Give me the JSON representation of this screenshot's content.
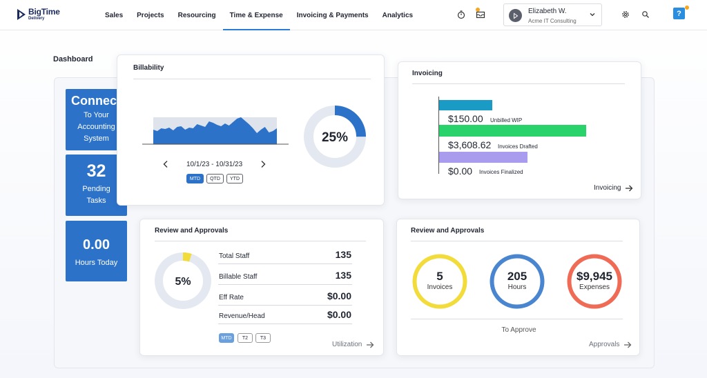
{
  "app": {
    "logo_title": "BigTime",
    "logo_sub": "Delivery"
  },
  "nav": {
    "items": [
      "Sales",
      "Projects",
      "Resourcing",
      "Time & Expense",
      "Invoicing & Payments",
      "Analytics"
    ],
    "active": "Time & Expense"
  },
  "user": {
    "name": "Elizabeth W.",
    "org": "Acme IT Consulting"
  },
  "help": {
    "label": "?"
  },
  "dashboard": {
    "title": "Dashboard",
    "tiles": {
      "connect": {
        "big": "Connec",
        "line1": "To Your",
        "line2": "Accounting",
        "line3": "System"
      },
      "pending": {
        "big": "32",
        "line1": "Pending",
        "line2": "Tasks"
      },
      "hours": {
        "big": "0.00",
        "line1": "Hours Today"
      }
    }
  },
  "billability": {
    "title": "Billability",
    "date_range": "10/1/23 - 10/31/23",
    "percent_label": "25%",
    "percent": 0.25,
    "periods": [
      "MTD",
      "QTD",
      "YTD"
    ],
    "active_period": "MTD"
  },
  "invoicing": {
    "title": "Invoicing",
    "items": [
      {
        "amount": "$150.00",
        "label": "Unbilled WIP",
        "color": "#1a9bc6",
        "fraction": 0.36
      },
      {
        "amount": "$3,608.62",
        "label": "Invoices Drafted",
        "color": "#2ad26b",
        "fraction": 1.0
      },
      {
        "amount": "$0.00",
        "label": "Invoices Finalized",
        "color": "#a99bee",
        "fraction": 0.6
      }
    ],
    "link": "Invoicing"
  },
  "review_staff": {
    "title": "Review and Approvals",
    "percent_label": "5%",
    "percent": 0.05,
    "stats": [
      {
        "label": "Total Staff",
        "value": "135"
      },
      {
        "label": "Billable Staff",
        "value": "135"
      },
      {
        "label": "Eff Rate",
        "value": "$0.00"
      },
      {
        "label": "Revenue/Head",
        "value": "$0.00"
      }
    ],
    "periods": [
      "MTD",
      "T2",
      "T3"
    ],
    "active_period": "MTD",
    "link": "Utilization"
  },
  "review_approvals": {
    "title": "Review and Approvals",
    "rings": [
      {
        "value": "5",
        "label": "Invoices",
        "color": "#f2dc3c"
      },
      {
        "value": "205",
        "label": "Hours",
        "color": "#4a86cf"
      },
      {
        "value": "$9,945",
        "label": "Expenses",
        "color": "#ef6b55"
      }
    ],
    "subtitle": "To Approve",
    "link": "Approvals"
  }
}
